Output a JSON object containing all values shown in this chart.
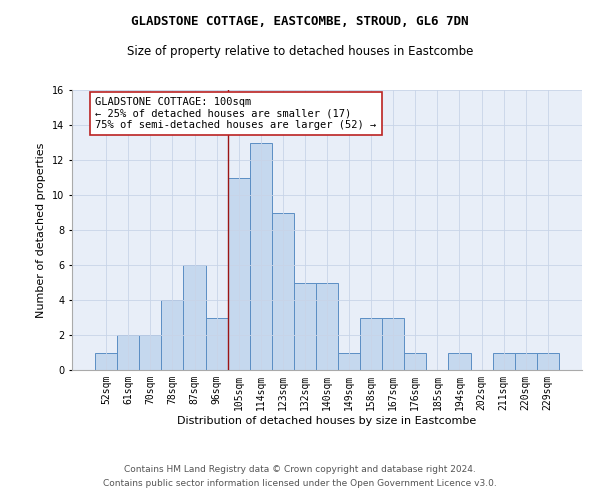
{
  "title": "GLADSTONE COTTAGE, EASTCOMBE, STROUD, GL6 7DN",
  "subtitle": "Size of property relative to detached houses in Eastcombe",
  "xlabel": "Distribution of detached houses by size in Eastcombe",
  "ylabel": "Number of detached properties",
  "footer_line1": "Contains HM Land Registry data © Crown copyright and database right 2024.",
  "footer_line2": "Contains public sector information licensed under the Open Government Licence v3.0.",
  "categories": [
    "52sqm",
    "61sqm",
    "70sqm",
    "78sqm",
    "87sqm",
    "96sqm",
    "105sqm",
    "114sqm",
    "123sqm",
    "132sqm",
    "140sqm",
    "149sqm",
    "158sqm",
    "167sqm",
    "176sqm",
    "185sqm",
    "194sqm",
    "202sqm",
    "211sqm",
    "220sqm",
    "229sqm"
  ],
  "values": [
    1,
    2,
    2,
    4,
    6,
    3,
    11,
    13,
    9,
    5,
    5,
    1,
    3,
    3,
    1,
    0,
    1,
    0,
    1,
    1,
    1
  ],
  "bar_color": "#c5d8ee",
  "bar_edgecolor": "#5b8ec4",
  "bar_linewidth": 0.7,
  "vline_x": 5.5,
  "vline_color": "#9b1515",
  "annotation_text": "GLADSTONE COTTAGE: 100sqm\n← 25% of detached houses are smaller (17)\n75% of semi-detached houses are larger (52) →",
  "annotation_box_edgecolor": "#bb2222",
  "annotation_box_facecolor": "#ffffff",
  "annotation_fontsize": 7.5,
  "ylim": [
    0,
    16
  ],
  "yticks": [
    0,
    2,
    4,
    6,
    8,
    10,
    12,
    14,
    16
  ],
  "grid_color": "#c8d4e8",
  "background_color": "#e8eef8",
  "title_fontsize": 9,
  "subtitle_fontsize": 8.5,
  "xlabel_fontsize": 8,
  "ylabel_fontsize": 8,
  "tick_fontsize": 7,
  "footer_fontsize": 6.5
}
